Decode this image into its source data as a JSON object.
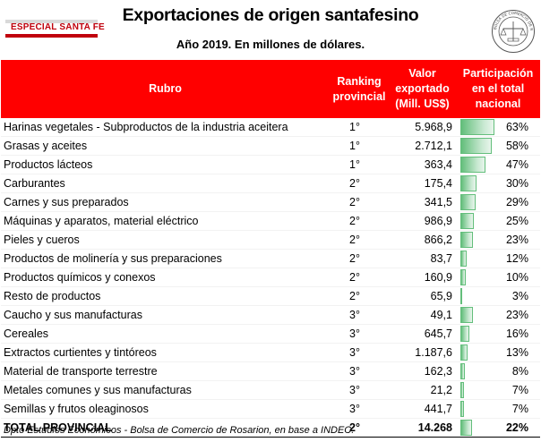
{
  "header": {
    "badge": "ESPECIAL SANTA FE",
    "title": "Exportaciones de origen santafesino",
    "subtitle": "Año 2019. En millones de dólares.",
    "seal_text": "BOLSA DE COMERCIO DE ROSARIO"
  },
  "colors": {
    "header_bg": "#ff0000",
    "bar": "#63be7b",
    "badge_red": "#c0000c"
  },
  "table": {
    "columns": {
      "rubro": "Rubro",
      "ranking_l1": "Ranking",
      "ranking_l2": "provincial",
      "valor_l1": "Valor",
      "valor_l2": "exportado",
      "valor_l3": "(Mill. US$)",
      "part_l1": "Participación",
      "part_l2": "en el total",
      "part_l3": "nacional"
    },
    "rows": [
      {
        "rubro": "Harinas vegetales - Subproductos de la industria aceitera",
        "ranking": "1°",
        "valor": "5.968,9",
        "participacion": "63%",
        "pct": 63
      },
      {
        "rubro": "Grasas y aceites",
        "ranking": "1°",
        "valor": "2.712,1",
        "participacion": "58%",
        "pct": 58
      },
      {
        "rubro": "Productos lácteos",
        "ranking": "1°",
        "valor": "363,4",
        "participacion": "47%",
        "pct": 47
      },
      {
        "rubro": "Carburantes",
        "ranking": "2°",
        "valor": "175,4",
        "participacion": "30%",
        "pct": 30
      },
      {
        "rubro": "Carnes y sus preparados",
        "ranking": "2°",
        "valor": "341,5",
        "participacion": "29%",
        "pct": 29
      },
      {
        "rubro": "Máquinas y aparatos, material eléctrico",
        "ranking": "2°",
        "valor": "986,9",
        "participacion": "25%",
        "pct": 25
      },
      {
        "rubro": "Pieles y cueros",
        "ranking": "2°",
        "valor": "866,2",
        "participacion": "23%",
        "pct": 23
      },
      {
        "rubro": "Productos de molinería y sus preparaciones",
        "ranking": "2°",
        "valor": "83,7",
        "participacion": "12%",
        "pct": 12
      },
      {
        "rubro": "Productos químicos y conexos",
        "ranking": "2°",
        "valor": "160,9",
        "participacion": "10%",
        "pct": 10
      },
      {
        "rubro": "Resto de productos",
        "ranking": "2°",
        "valor": "65,9",
        "participacion": "3%",
        "pct": 3
      },
      {
        "rubro": "Caucho y sus manufacturas",
        "ranking": "3°",
        "valor": "49,1",
        "participacion": "23%",
        "pct": 23
      },
      {
        "rubro": "Cereales",
        "ranking": "3°",
        "valor": "645,7",
        "participacion": "16%",
        "pct": 16
      },
      {
        "rubro": "Extractos curtientes y tintóreos",
        "ranking": "3°",
        "valor": "1.187,6",
        "participacion": "13%",
        "pct": 13
      },
      {
        "rubro": "Material de transporte terrestre",
        "ranking": "3°",
        "valor": "162,3",
        "participacion": "8%",
        "pct": 8
      },
      {
        "rubro": "Metales comunes y sus manufacturas",
        "ranking": "3°",
        "valor": "21,2",
        "participacion": "7%",
        "pct": 7
      },
      {
        "rubro": "Semillas y frutos oleaginosos",
        "ranking": "3°",
        "valor": "441,7",
        "participacion": "7%",
        "pct": 7
      }
    ],
    "total": {
      "rubro": "TOTAL PROVINCIAL",
      "ranking": "2°",
      "valor": "14.268",
      "participacion": "22%",
      "pct": 22
    }
  },
  "footer": "Dpto Estudios Económicos - Bolsa de Comercio de Rosarion, en base a INDEC."
}
